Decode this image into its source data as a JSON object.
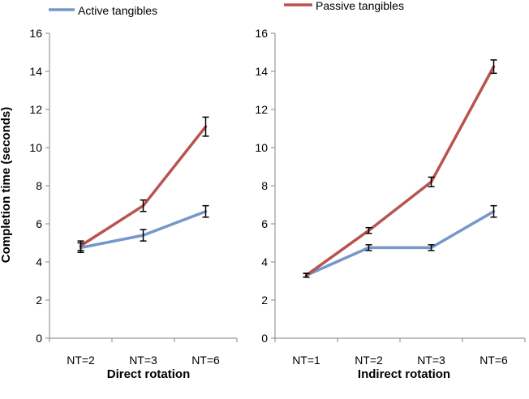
{
  "legend": {
    "active_label": "Active tangibles",
    "passive_label": "Passive tangibles"
  },
  "colors": {
    "active": "#7597c9",
    "passive": "#b85450",
    "axis": "#868686"
  },
  "chart_data": [
    {
      "type": "line",
      "title": "",
      "xlabel": "Direct rotation",
      "ylabel": "Completion time (seconds)",
      "ylim": [
        0,
        16
      ],
      "yticks": [
        0,
        2,
        4,
        6,
        8,
        10,
        12,
        14,
        16
      ],
      "categories": [
        "NT=2",
        "NT=3",
        "NT=6"
      ],
      "grid": false,
      "series": [
        {
          "name": "Active tangibles",
          "values": [
            4.75,
            5.4,
            6.65
          ],
          "errors": [
            0.25,
            0.3,
            0.3
          ]
        },
        {
          "name": "Passive tangibles",
          "values": [
            4.85,
            6.95,
            11.1
          ],
          "errors": [
            0.25,
            0.3,
            0.5
          ]
        }
      ]
    },
    {
      "type": "line",
      "title": "",
      "xlabel": "Indirect rotation",
      "ylabel": "",
      "ylim": [
        0,
        16
      ],
      "yticks": [
        0,
        2,
        4,
        6,
        8,
        10,
        12,
        14,
        16
      ],
      "categories": [
        "NT=1",
        "NT=2",
        "NT=3",
        "NT=6"
      ],
      "grid": false,
      "series": [
        {
          "name": "Active tangibles",
          "values": [
            3.3,
            4.75,
            4.75,
            6.65
          ],
          "errors": [
            0.1,
            0.15,
            0.15,
            0.3
          ]
        },
        {
          "name": "Passive tangibles",
          "values": [
            3.3,
            5.65,
            8.2,
            14.25
          ],
          "errors": [
            0.1,
            0.15,
            0.25,
            0.35
          ]
        }
      ]
    }
  ]
}
